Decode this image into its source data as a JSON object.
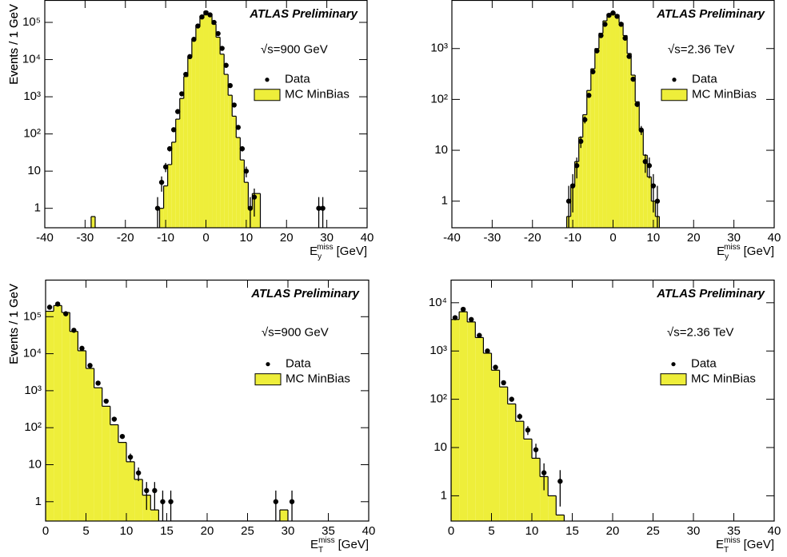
{
  "chart_data": [
    {
      "type": "histogram",
      "y_label": "Events / 1 GeV",
      "x_label": {
        "base": "E",
        "sub": "y",
        "sup": "miss",
        "unit": "[GeV]"
      },
      "annotations": [
        "ATLAS Preliminary",
        "√s=900 GeV"
      ],
      "log_y": true,
      "xlim": [
        -40,
        40
      ],
      "xticks": [
        -40,
        -30,
        -20,
        -10,
        0,
        10,
        20,
        30,
        40
      ],
      "ylim": [
        0.3,
        400000
      ],
      "yticks": [
        1,
        10,
        {
          "value": 100,
          "label": "10²"
        },
        {
          "value": 1000,
          "label": "10³"
        },
        {
          "value": 10000,
          "label": "10⁴"
        },
        {
          "value": 100000,
          "label": "10⁵"
        }
      ],
      "series": [
        {
          "name": "Data",
          "color": "#000000",
          "x": [
            -12,
            -11,
            -10,
            -9,
            -8,
            -7,
            -6,
            -5,
            -4,
            -3,
            -2,
            -1,
            0,
            1,
            2,
            3,
            4,
            5,
            6,
            7,
            8,
            9,
            10,
            11,
            12,
            28,
            29
          ],
          "values": [
            1,
            5,
            13,
            40,
            130,
            400,
            1200,
            4000,
            12000,
            35000,
            80000,
            140000,
            180000,
            160000,
            100000,
            50000,
            20000,
            7000,
            2000,
            600,
            150,
            40,
            10,
            1,
            2,
            1,
            1
          ],
          "errors": [
            1,
            2.2,
            3.6,
            6.3,
            11,
            20,
            35,
            63,
            110,
            190,
            280,
            370,
            420,
            400,
            320,
            220,
            140,
            84,
            45,
            24,
            12,
            6.3,
            3.2,
            1,
            1.4,
            1,
            1
          ]
        },
        {
          "name": "MC MinBias",
          "color": "#eeee3a",
          "bins": [
            -28.5,
            -27.5,
            -12.5,
            -11.5,
            -10.5,
            -9.5,
            -8.5,
            -7.5,
            -6.5,
            -5.5,
            -4.5,
            -3.5,
            -2.5,
            -1.5,
            -0.5,
            0.5,
            1.5,
            2.5,
            3.5,
            4.5,
            5.5,
            6.5,
            7.5,
            8.5,
            9.5,
            10.5,
            11.5,
            12.5,
            13.5
          ],
          "values": [
            0.6,
            0,
            0,
            1,
            4,
            15,
            60,
            250,
            900,
            3500,
            12000,
            35000,
            80000,
            150000,
            200000,
            160000,
            90000,
            40000,
            14000,
            4000,
            1100,
            300,
            80,
            20,
            5,
            1,
            2.5,
            2.5
          ]
        }
      ]
    },
    {
      "type": "histogram",
      "y_label": "Events / 1 GeV",
      "x_label": {
        "base": "E",
        "sub": "y",
        "sup": "miss",
        "unit": "[GeV]"
      },
      "annotations": [
        "ATLAS Preliminary",
        "√s=2.36 TeV"
      ],
      "log_y": true,
      "xlim": [
        -40,
        40
      ],
      "xticks": [
        -40,
        -30,
        -20,
        -10,
        0,
        10,
        20,
        30,
        40
      ],
      "ylim": [
        0.3,
        9000
      ],
      "yticks": [
        1,
        10,
        {
          "value": 100,
          "label": "10²"
        },
        {
          "value": 1000,
          "label": "10³"
        }
      ],
      "series": [
        {
          "name": "Data",
          "color": "#000000",
          "x": [
            -11,
            -10,
            -9,
            -8,
            -7,
            -6,
            -5,
            -4,
            -3,
            -2,
            -1,
            0,
            1,
            2,
            3,
            4,
            5,
            6,
            7,
            8,
            9,
            10,
            11
          ],
          "values": [
            1,
            2,
            5,
            15,
            40,
            120,
            350,
            900,
            1800,
            3000,
            4500,
            5000,
            4300,
            3000,
            1600,
            700,
            250,
            80,
            25,
            6,
            5,
            2,
            1
          ],
          "errors": [
            1,
            1.4,
            2.2,
            3.9,
            6.3,
            11,
            19,
            30,
            42,
            55,
            67,
            71,
            66,
            55,
            40,
            26,
            16,
            8.9,
            5,
            2.4,
            2.2,
            1.4,
            1
          ]
        },
        {
          "name": "MC MinBias",
          "color": "#eeee3a",
          "bins": [
            -11.5,
            -10.5,
            -9.5,
            -8.5,
            -7.5,
            -6.5,
            -5.5,
            -4.5,
            -3.5,
            -2.5,
            -1.5,
            -0.5,
            0.5,
            1.5,
            2.5,
            3.5,
            4.5,
            5.5,
            6.5,
            7.5,
            8.5,
            9.5,
            10.5,
            11.5
          ],
          "values": [
            0.5,
            2,
            6,
            18,
            50,
            150,
            400,
            1000,
            2000,
            3500,
            4800,
            5200,
            4600,
            3200,
            1800,
            800,
            300,
            90,
            25,
            8,
            3,
            1,
            0.5
          ]
        }
      ]
    },
    {
      "type": "histogram",
      "y_label": "Events / 1 GeV",
      "x_label": {
        "base": "E",
        "sub": "T",
        "sup": "miss",
        "unit": "[GeV]"
      },
      "annotations": [
        "ATLAS Preliminary",
        "√s=900 GeV"
      ],
      "log_y": true,
      "xlim": [
        0,
        40
      ],
      "xticks": [
        0,
        5,
        10,
        15,
        20,
        25,
        30,
        35,
        40
      ],
      "ylim": [
        0.3,
        1000000
      ],
      "yticks": [
        1,
        10,
        {
          "value": 100,
          "label": "10²"
        },
        {
          "value": 1000,
          "label": "10³"
        },
        {
          "value": 10000,
          "label": "10⁴"
        },
        {
          "value": 100000,
          "label": "10⁵"
        }
      ],
      "series": [
        {
          "name": "Data",
          "color": "#000000",
          "x": [
            0.5,
            1.5,
            2.5,
            3.5,
            4.5,
            5.5,
            6.5,
            7.5,
            8.5,
            9.5,
            10.5,
            11.5,
            12.5,
            13.5,
            14.5,
            15.5,
            28.5,
            30.5
          ],
          "values": [
            180000,
            220000,
            120000,
            43000,
            14000,
            4800,
            1600,
            520,
            170,
            58,
            16,
            6,
            2,
            2,
            1,
            1,
            1,
            1
          ],
          "errors": [
            420,
            470,
            350,
            210,
            120,
            69,
            40,
            23,
            13,
            7.6,
            4,
            2.4,
            1.4,
            1.4,
            1,
            1,
            1,
            1
          ]
        },
        {
          "name": "MC MinBias",
          "color": "#eeee3a",
          "bins": [
            0,
            1,
            2,
            3,
            4,
            5,
            6,
            7,
            8,
            9,
            10,
            11,
            12,
            13,
            14,
            29,
            30
          ],
          "values": [
            140000,
            200000,
            130000,
            40000,
            12000,
            4000,
            1200,
            380,
            120,
            40,
            12,
            4,
            1.5,
            0.6,
            0,
            0.6
          ]
        }
      ]
    },
    {
      "type": "histogram",
      "y_label": "Events / 1 GeV",
      "x_label": {
        "base": "E",
        "sub": "T",
        "sup": "miss",
        "unit": "[GeV]"
      },
      "annotations": [
        "ATLAS Preliminary",
        "√s=2.36 TeV"
      ],
      "log_y": true,
      "xlim": [
        0,
        40
      ],
      "xticks": [
        0,
        5,
        10,
        15,
        20,
        25,
        30,
        35,
        40
      ],
      "ylim": [
        0.3,
        30000
      ],
      "yticks": [
        1,
        10,
        {
          "value": 100,
          "label": "10²"
        },
        {
          "value": 1000,
          "label": "10³"
        },
        {
          "value": 10000,
          "label": "10⁴"
        }
      ],
      "series": [
        {
          "name": "Data",
          "color": "#000000",
          "x": [
            0.5,
            1.5,
            2.5,
            3.5,
            4.5,
            5.5,
            6.5,
            7.5,
            8.5,
            9.5,
            10.5,
            11.5,
            13.5
          ],
          "values": [
            4900,
            7300,
            4500,
            2100,
            1000,
            460,
            220,
            100,
            44,
            23,
            9,
            3,
            2
          ],
          "errors": [
            70,
            85,
            67,
            46,
            32,
            21,
            15,
            10,
            6.6,
            4.8,
            3,
            1.7,
            1.4
          ]
        },
        {
          "name": "MC MinBias",
          "color": "#eeee3a",
          "bins": [
            0,
            1,
            2,
            3,
            4,
            5,
            6,
            7,
            8,
            9,
            10,
            11,
            12,
            13,
            14
          ],
          "values": [
            4500,
            6500,
            4000,
            1900,
            900,
            400,
            180,
            80,
            35,
            15,
            6,
            2.5,
            1,
            0.4
          ]
        }
      ]
    }
  ]
}
